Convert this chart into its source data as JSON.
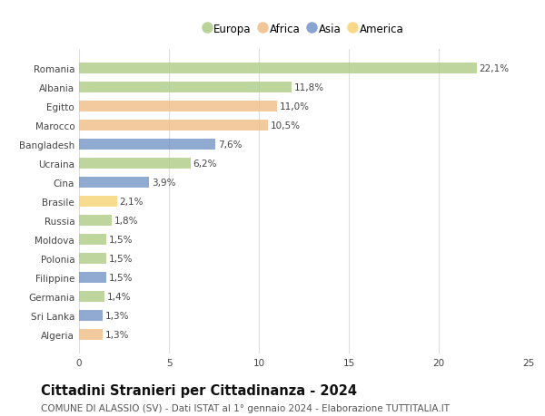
{
  "countries": [
    "Romania",
    "Albania",
    "Egitto",
    "Marocco",
    "Bangladesh",
    "Ucraina",
    "Cina",
    "Brasile",
    "Russia",
    "Moldova",
    "Polonia",
    "Filippine",
    "Germania",
    "Sri Lanka",
    "Algeria"
  ],
  "values": [
    22.1,
    11.8,
    11.0,
    10.5,
    7.6,
    6.2,
    3.9,
    2.1,
    1.8,
    1.5,
    1.5,
    1.5,
    1.4,
    1.3,
    1.3
  ],
  "continents": [
    "Europa",
    "Europa",
    "Africa",
    "Africa",
    "Asia",
    "Europa",
    "Asia",
    "America",
    "Europa",
    "Europa",
    "Europa",
    "Asia",
    "Europa",
    "Asia",
    "Africa"
  ],
  "continent_colors": {
    "Europa": "#a8c87e",
    "Africa": "#f0b87e",
    "Asia": "#6b8ec4",
    "America": "#f5d06a"
  },
  "legend_order": [
    "Europa",
    "Africa",
    "Asia",
    "America"
  ],
  "title": "Cittadini Stranieri per Cittadinanza - 2024",
  "subtitle": "COMUNE DI ALASSIO (SV) - Dati ISTAT al 1° gennaio 2024 - Elaborazione TUTTITALIA.IT",
  "xlim": [
    0,
    25
  ],
  "xticks": [
    0,
    5,
    10,
    15,
    20,
    25
  ],
  "bg_color": "#ffffff",
  "grid_color": "#dddddd",
  "bar_height": 0.55,
  "title_fontsize": 10.5,
  "subtitle_fontsize": 7.5,
  "label_fontsize": 7.5,
  "tick_fontsize": 7.5,
  "legend_fontsize": 8.5
}
